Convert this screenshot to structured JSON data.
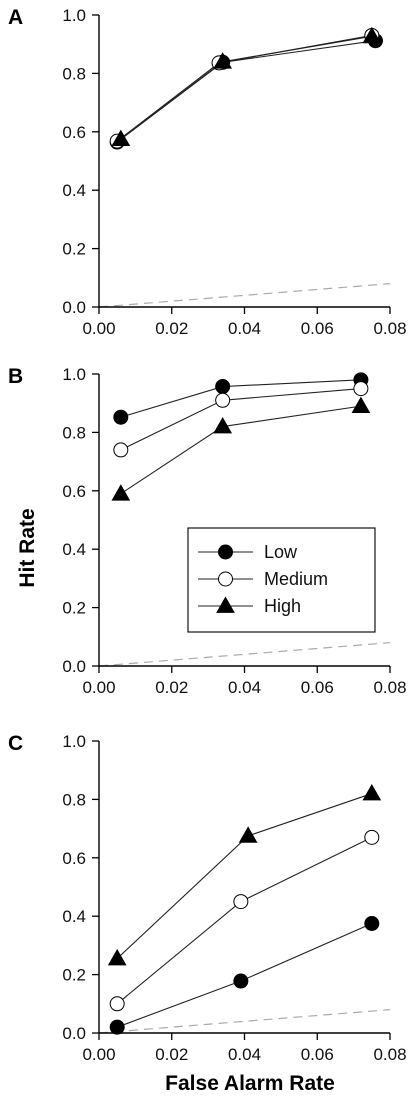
{
  "chart_data": {
    "type": "line",
    "xlabel": "False Alarm Rate",
    "ylabel": "Hit Rate",
    "xlim": [
      0,
      0.08
    ],
    "ylim": [
      0,
      1.0
    ],
    "x_ticks": [
      "0.00",
      "0.02",
      "0.04",
      "0.06",
      "0.08"
    ],
    "y_ticks": [
      "0.0",
      "0.2",
      "0.4",
      "0.6",
      "0.8",
      "1.0"
    ],
    "grid": false,
    "chance_line": {
      "style": "dashed",
      "color": "#aaaaaa",
      "x": [
        0,
        0.08
      ],
      "y": [
        0,
        0.08
      ]
    },
    "legend": {
      "placement": "center",
      "entries": [
        "Low",
        "Medium",
        "High"
      ]
    },
    "series_styles": [
      {
        "name": "Low",
        "marker": "filled-circle"
      },
      {
        "name": "Medium",
        "marker": "open-circle"
      },
      {
        "name": "High",
        "marker": "filled-triangle"
      }
    ],
    "panels": [
      {
        "label": "A",
        "series": [
          {
            "name": "Low",
            "x": [
              0.005,
              0.034,
              0.076
            ],
            "y": [
              0.565,
              0.838,
              0.912
            ]
          },
          {
            "name": "Medium",
            "x": [
              0.005,
              0.033,
              0.075
            ],
            "y": [
              0.568,
              0.836,
              0.93
            ]
          },
          {
            "name": "High",
            "x": [
              0.006,
              0.034,
              0.075
            ],
            "y": [
              0.575,
              0.84,
              0.927
            ]
          }
        ]
      },
      {
        "label": "B",
        "series": [
          {
            "name": "Low",
            "x": [
              0.006,
              0.034,
              0.072
            ],
            "y": [
              0.852,
              0.957,
              0.98
            ]
          },
          {
            "name": "Medium",
            "x": [
              0.006,
              0.034,
              0.072
            ],
            "y": [
              0.74,
              0.91,
              0.95
            ]
          },
          {
            "name": "High",
            "x": [
              0.006,
              0.034,
              0.072
            ],
            "y": [
              0.59,
              0.82,
              0.89
            ]
          }
        ]
      },
      {
        "label": "C",
        "series": [
          {
            "name": "Low",
            "x": [
              0.005,
              0.039,
              0.075
            ],
            "y": [
              0.02,
              0.178,
              0.375
            ]
          },
          {
            "name": "Medium",
            "x": [
              0.005,
              0.039,
              0.075
            ],
            "y": [
              0.1,
              0.45,
              0.67
            ]
          },
          {
            "name": "High",
            "x": [
              0.005,
              0.041,
              0.075
            ],
            "y": [
              0.255,
              0.675,
              0.82
            ]
          }
        ]
      }
    ]
  }
}
